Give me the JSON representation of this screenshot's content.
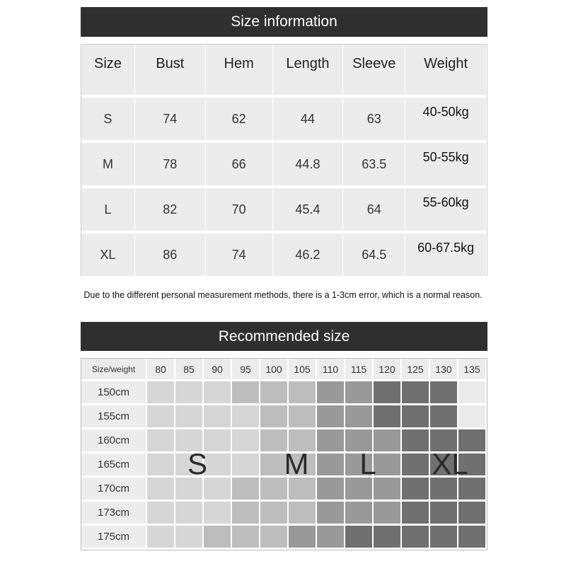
{
  "size_info": {
    "title": "Size information",
    "headers": [
      "Size",
      "Bust",
      "Hem",
      "Length",
      "Sleeve",
      "Weight"
    ],
    "rows": [
      [
        "S",
        "74",
        "62",
        "44",
        "63",
        "40-50kg"
      ],
      [
        "M",
        "78",
        "66",
        "44.8",
        "63.5",
        "50-55kg"
      ],
      [
        "L",
        "82",
        "70",
        "45.4",
        "64",
        "55-60kg"
      ],
      [
        "XL",
        "86",
        "74",
        "46.2",
        "64.5",
        "60-67.5kg"
      ]
    ]
  },
  "note": "Due to the different personal measurement methods, there is a 1-3cm error, which is a normal reason.",
  "recommended": {
    "title": "Recommended size",
    "corner": "Size/weight",
    "weights": [
      "80",
      "85",
      "90",
      "95",
      "100",
      "105",
      "110",
      "115",
      "120",
      "125",
      "130",
      "135"
    ],
    "heights": [
      "150cm",
      "155cm",
      "160cm",
      "165cm",
      "170cm",
      "173cm",
      "175cm"
    ],
    "grid": [
      [
        "S",
        "S",
        "S",
        "M",
        "M",
        "M",
        "L",
        "L",
        "XL",
        "XL",
        "XL",
        ""
      ],
      [
        "S",
        "S",
        "S",
        "S",
        "M",
        "M",
        "L",
        "L",
        "XL",
        "XL",
        "XL",
        ""
      ],
      [
        "S",
        "S",
        "S",
        "S",
        "M",
        "M",
        "L",
        "L",
        "L",
        "XL",
        "XL",
        "XL"
      ],
      [
        "S",
        "S",
        "S",
        "S",
        "M",
        "M",
        "L",
        "L",
        "L",
        "XL",
        "XL",
        "XL"
      ],
      [
        "S",
        "S",
        "S",
        "M",
        "M",
        "M",
        "L",
        "L",
        "L",
        "XL",
        "XL",
        "XL"
      ],
      [
        "S",
        "S",
        "S",
        "M",
        "M",
        "M",
        "L",
        "L",
        "L",
        "XL",
        "XL",
        "XL"
      ],
      [
        "S",
        "S",
        "M",
        "M",
        "M",
        "L",
        "L",
        "XL",
        "XL",
        "XL",
        "XL",
        "XL"
      ]
    ],
    "labels": [
      "S",
      "M",
      "L",
      "XL"
    ],
    "colors": {
      "S": "#d6d6d6",
      "M": "#bdbdbd",
      "L": "#999999",
      "XL": "#707070",
      "": "#ebebeb"
    }
  }
}
